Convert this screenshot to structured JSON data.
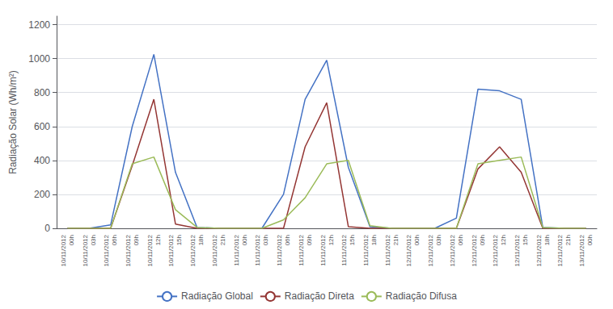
{
  "chart_data": {
    "type": "line",
    "ylabel": "Radiação Solar (Wh/m²)",
    "categories": [
      "10/11/2012\n00h",
      "10/11/2012\n03h",
      "10/11/2012\n06h",
      "10/11/2012\n09h",
      "10/11/2012\n12h",
      "10/11/2012\n15h",
      "10/11/2012\n18h",
      "10/11/2012\n21h",
      "11/11/2012\n00h",
      "11/11/2012\n03h",
      "11/11/2012\n06h",
      "11/11/2012\n09h",
      "11/11/2012\n12h",
      "11/11/2012\n15h",
      "11/11/2012\n18h",
      "11/11/2012\n21h",
      "12/11/2012\n00h",
      "12/11/2012\n03h",
      "12/11/2012\n06h",
      "12/11/2012\n09h",
      "12/11/2012\n12h",
      "12/11/2012\n15h",
      "12/11/2012\n18h",
      "12/11/2012\n21h",
      "13/11/2012\n00h"
    ],
    "series": [
      {
        "name": "Radiação Global",
        "color": "#4472c4",
        "values": [
          0,
          0,
          20,
          600,
          1025,
          330,
          5,
          0,
          0,
          0,
          200,
          760,
          990,
          360,
          10,
          0,
          0,
          0,
          60,
          820,
          810,
          760,
          5,
          0,
          0
        ]
      },
      {
        "name": "Radiação Direta",
        "color": "#943634",
        "values": [
          0,
          0,
          0,
          370,
          760,
          25,
          0,
          0,
          0,
          0,
          0,
          480,
          740,
          10,
          0,
          0,
          0,
          0,
          0,
          350,
          480,
          330,
          0,
          0,
          0
        ]
      },
      {
        "name": "Radiação Difusa",
        "color": "#9bbb59",
        "values": [
          0,
          0,
          0,
          380,
          420,
          110,
          5,
          0,
          0,
          0,
          50,
          180,
          380,
          400,
          15,
          0,
          0,
          0,
          0,
          380,
          400,
          420,
          5,
          0,
          0
        ]
      }
    ],
    "ylim": [
      0,
      1250
    ],
    "yticks": [
      0,
      200,
      400,
      600,
      800,
      1000,
      1200
    ],
    "grid": true,
    "legend": "bottom"
  }
}
